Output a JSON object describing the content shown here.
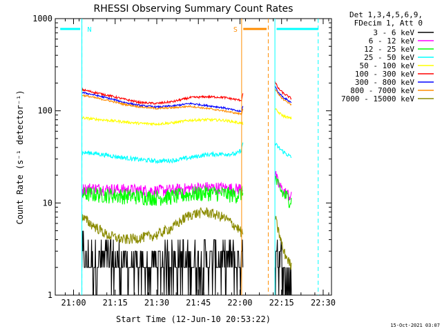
{
  "chart_data": {
    "type": "line",
    "title": "RHESSI Observing Summary Count Rates",
    "xlabel": "Start Time (12-Jun-10 20:53:22)",
    "ylabel": "Count Rate (s⁻¹ detector⁻¹)",
    "yscale": "log",
    "ylim": [
      1,
      1000
    ],
    "xlim_minutes": [
      20.89,
      22.55
    ],
    "x_tick_labels": [
      "21:00",
      "21:15",
      "21:30",
      "21:45",
      "22:00",
      "22:15",
      "22:30"
    ],
    "x_tick_hours": [
      21.0,
      21.25,
      21.5,
      21.75,
      22.0,
      22.25,
      22.5
    ],
    "y_tick_labels": [
      "1",
      "10",
      "100",
      "1000"
    ],
    "y_tick_values": [
      1,
      10,
      100,
      1000
    ],
    "legend_header": [
      "Det 1,3,4,5,6,9,",
      "FDecim 1, Att 0"
    ],
    "legend_position": "right",
    "series": [
      {
        "name": "3 - 6 keV",
        "color": "#000000",
        "segments": [
          {
            "x": [
              21.05,
              21.1,
              21.2,
              21.3,
              21.4,
              21.5,
              21.6,
              21.7,
              21.8,
              21.9,
              21.98,
              22.02
            ],
            "y": [
              3,
              2.8,
              2.5,
              2.2,
              2.1,
              2.2,
              2.4,
              2.7,
              2.9,
              2.8,
              2.6,
              2.6
            ],
            "noise": 0.45
          },
          {
            "x": [
              22.21,
              22.24,
              22.27,
              22.31
            ],
            "y": [
              4,
              2.5,
              1.8,
              1.2
            ],
            "noise": 0.4
          }
        ]
      },
      {
        "name": "6 - 12 keV",
        "color": "#ff00ff",
        "segments": [
          {
            "x": [
              21.05,
              21.1,
              21.2,
              21.3,
              21.4,
              21.5,
              21.6,
              21.7,
              21.8,
              21.9,
              21.98,
              22.02
            ],
            "y": [
              14,
              14.5,
              14.2,
              14,
              13.8,
              13.6,
              13.9,
              14.4,
              14.8,
              14.6,
              14.2,
              15
            ],
            "noise": 0.07
          },
          {
            "x": [
              22.21,
              22.23,
              22.26,
              22.31
            ],
            "y": [
              21,
              16,
              13.5,
              11.5
            ],
            "noise": 0.07
          }
        ]
      },
      {
        "name": "12 - 25 keV",
        "color": "#00ff00",
        "segments": [
          {
            "x": [
              21.05,
              21.1,
              21.2,
              21.3,
              21.4,
              21.5,
              21.6,
              21.7,
              21.8,
              21.9,
              21.98,
              22.02
            ],
            "y": [
              12.5,
              12.5,
              12.3,
              12,
              11.8,
              11.5,
              11.8,
              12.5,
              13,
              12.7,
              12.2,
              13
            ],
            "noise": 0.09
          },
          {
            "x": [
              22.21,
              22.23,
              22.26,
              22.31
            ],
            "y": [
              19,
              15,
              12.5,
              10.5
            ],
            "noise": 0.09
          }
        ]
      },
      {
        "name": "25 - 50 keV",
        "color": "#00ffff",
        "segments": [
          {
            "x": [
              21.05,
              21.1,
              21.2,
              21.3,
              21.4,
              21.5,
              21.6,
              21.7,
              21.8,
              21.9,
              21.98,
              22.01,
              22.02
            ],
            "y": [
              35,
              35,
              33,
              31,
              29.5,
              28.5,
              29,
              31,
              33.5,
              34,
              34,
              38,
              48
            ],
            "noise": 0.025
          },
          {
            "x": [
              22.21,
              22.23,
              22.26,
              22.31
            ],
            "y": [
              44,
              40,
              36,
              31
            ],
            "noise": 0.025
          }
        ]
      },
      {
        "name": "50 - 100 keV",
        "color": "#ffff00",
        "segments": [
          {
            "x": [
              21.05,
              21.1,
              21.2,
              21.3,
              21.4,
              21.5,
              21.6,
              21.7,
              21.8,
              21.9,
              21.98,
              22.02
            ],
            "y": [
              84,
              82,
              79,
              76,
              73,
              72,
              74,
              79,
              80,
              79,
              75,
              72
            ],
            "noise": 0.015
          },
          {
            "x": [
              22.21,
              22.23,
              22.26,
              22.31
            ],
            "y": [
              105,
              96,
              88,
              82
            ],
            "noise": 0.015
          }
        ]
      },
      {
        "name": "100 - 300 keV",
        "color": "#ff0000",
        "segments": [
          {
            "x": [
              21.05,
              21.1,
              21.2,
              21.3,
              21.4,
              21.5,
              21.6,
              21.7,
              21.8,
              21.9,
              21.98,
              22.01,
              22.02
            ],
            "y": [
              170,
              162,
              148,
              134,
              123,
              120,
              126,
              139,
              142,
              140,
              132,
              130,
              168
            ],
            "noise": 0.012
          },
          {
            "x": [
              22.21,
              22.23,
              22.26,
              22.31
            ],
            "y": [
              205,
              175,
              155,
              135
            ],
            "noise": 0.012
          }
        ]
      },
      {
        "name": "300 - 800 keV",
        "color": "#0000ff",
        "segments": [
          {
            "x": [
              21.05,
              21.1,
              21.2,
              21.3,
              21.4,
              21.5,
              21.6,
              21.7,
              21.8,
              21.9,
              21.98,
              22.01,
              22.02
            ],
            "y": [
              158,
              152,
              138,
              124,
              114,
              110,
              113,
              120,
              114,
              108,
              100,
              98,
              120
            ],
            "noise": 0.01
          },
          {
            "x": [
              22.21,
              22.23,
              22.26,
              22.31
            ],
            "y": [
              185,
              158,
              140,
              122
            ],
            "noise": 0.01
          }
        ]
      },
      {
        "name": "800 - 7000 keV",
        "color": "#ff8c00",
        "segments": [
          {
            "x": [
              21.05,
              21.1,
              21.2,
              21.3,
              21.4,
              21.5,
              21.6,
              21.7,
              21.8,
              21.9,
              21.98,
              22.01,
              22.02
            ],
            "y": [
              148,
              142,
              130,
              118,
              110,
              106,
              108,
              112,
              106,
              100,
              94,
              92,
              112
            ],
            "noise": 0.01
          },
          {
            "x": [
              22.21,
              22.23,
              22.26,
              22.31
            ],
            "y": [
              175,
              150,
              133,
              116
            ],
            "noise": 0.01
          }
        ]
      },
      {
        "name": "7000 - 15000 keV",
        "color": "#8b8b00",
        "segments": [
          {
            "x": [
              21.05,
              21.1,
              21.2,
              21.3,
              21.4,
              21.5,
              21.6,
              21.7,
              21.8,
              21.9,
              21.98,
              22.02
            ],
            "y": [
              7,
              6,
              4.5,
              4,
              4.2,
              4.5,
              5.5,
              7.5,
              8,
              7,
              5.5,
              4.5
            ],
            "noise": 0.06
          },
          {
            "x": [
              22.21,
              22.23,
              22.26,
              22.31
            ],
            "y": [
              7,
              5,
              3,
              2
            ],
            "noise": 0.06
          }
        ]
      }
    ],
    "markers": [
      {
        "label": "N",
        "color": "#00ffff",
        "x_solid": 21.05,
        "x_dashed": 21.05,
        "bar_from": 20.92,
        "bar_to": 21.04
      },
      {
        "label": "S",
        "color": "#ff8c00",
        "x_solid": 22.01,
        "x_dashed": 22.17,
        "bar_from": 22.02,
        "bar_to": 22.16
      },
      {
        "label": "",
        "color": "#00ffff",
        "x_solid": 22.21,
        "x_dashed": 22.47,
        "bar_from": 22.22,
        "bar_to": 22.47
      }
    ],
    "timestamp": "15-Oct-2021 03:07"
  }
}
